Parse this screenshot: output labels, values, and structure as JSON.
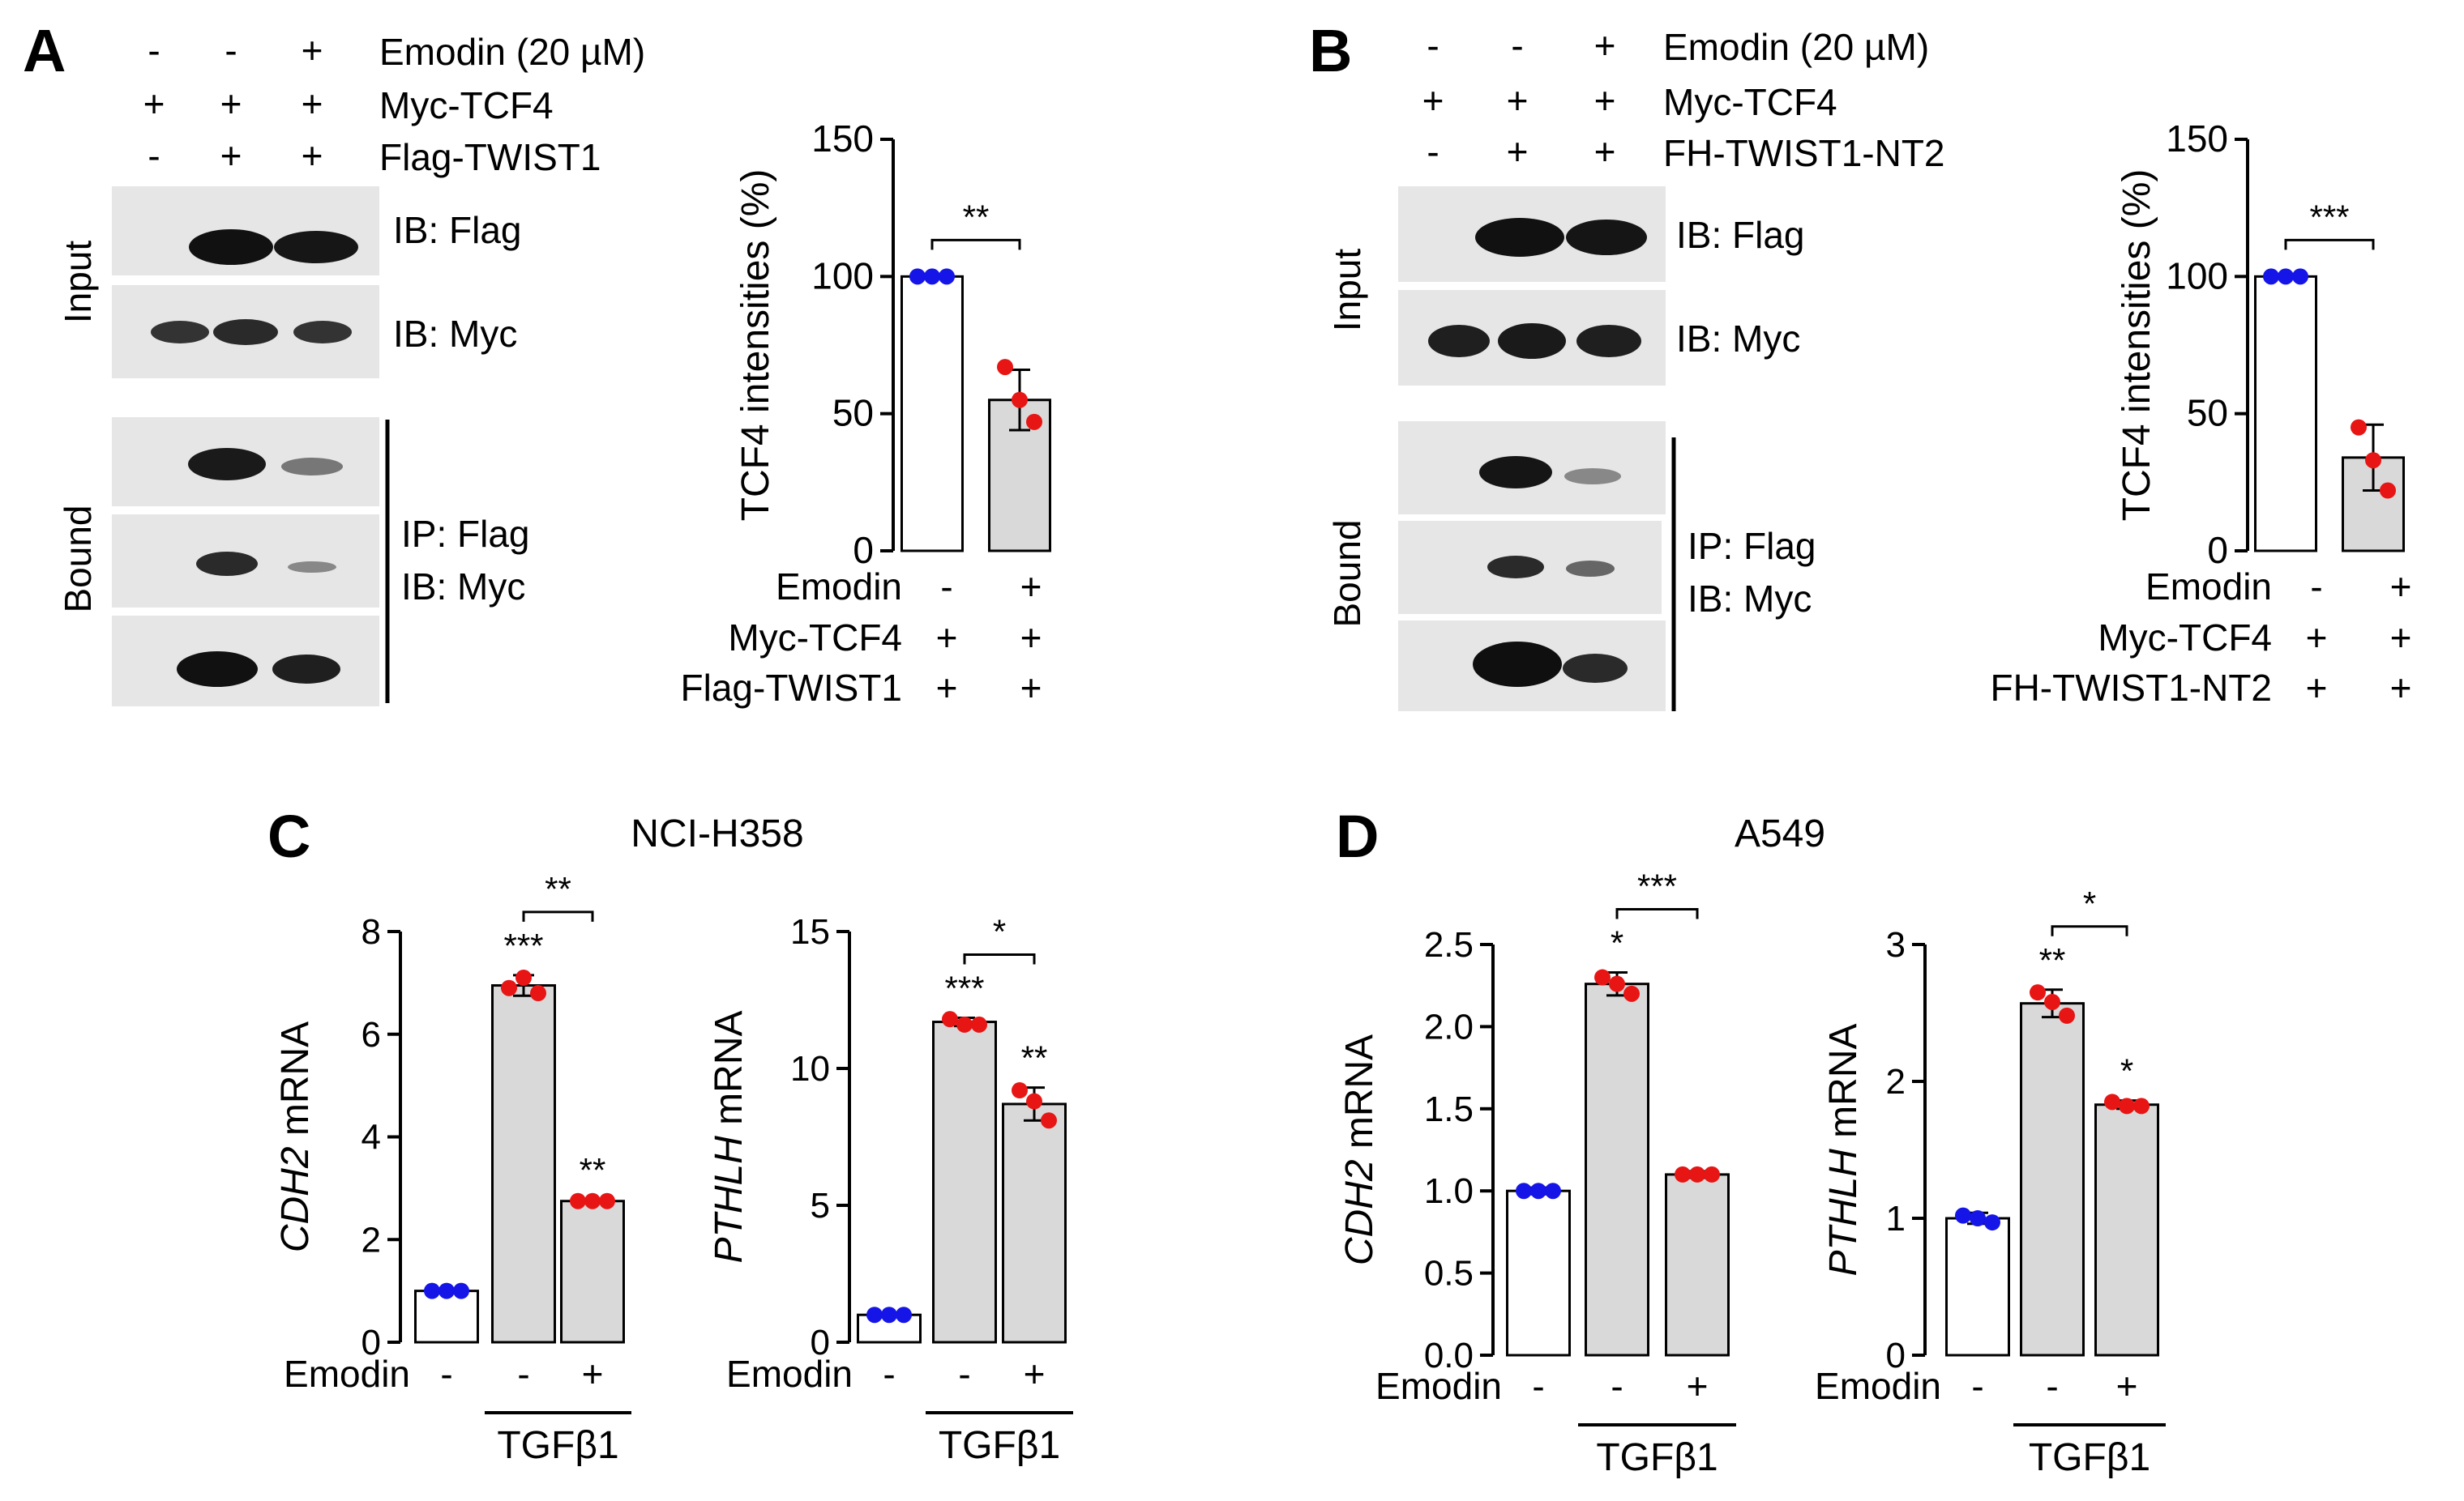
{
  "panels": {
    "A": {
      "letter": "A",
      "treatments": [
        {
          "label": "Emodin (20 µM)",
          "signs": [
            "-",
            "-",
            "+"
          ]
        },
        {
          "label": "Myc-TCF4",
          "signs": [
            "+",
            "+",
            "+"
          ]
        },
        {
          "label": "Flag-TWIST1",
          "signs": [
            "-",
            "+",
            "+"
          ]
        }
      ],
      "blot_labels": {
        "input_side": "Input",
        "bound_side": "Bound",
        "ib_flag": "IB: Flag",
        "ib_myc": "IB: Myc",
        "ip_flag": "IP: Flag",
        "ip_ib_myc": "IB: Myc"
      }
    },
    "B": {
      "letter": "B",
      "treatments": [
        {
          "label": "Emodin (20 µM)",
          "signs": [
            "-",
            "-",
            "+"
          ]
        },
        {
          "label": "Myc-TCF4",
          "signs": [
            "+",
            "+",
            "+"
          ]
        },
        {
          "label": "FH-TWIST1-NT2",
          "signs": [
            "-",
            "+",
            "+"
          ]
        }
      ],
      "blot_labels": {
        "input_side": "Input",
        "bound_side": "Bound",
        "ib_flag": "IB: Flag",
        "ib_myc": "IB: Myc",
        "ip_flag": "IP: Flag",
        "ip_ib_myc": "IB: Myc"
      }
    },
    "C": {
      "letter": "C",
      "cell_line": "NCI-H358"
    },
    "D": {
      "letter": "D",
      "cell_line": "A549"
    }
  },
  "colors": {
    "control_dot": "#1515e8",
    "treated_dot": "#e81515",
    "bar_fill_gray": "#d9d9d9",
    "bar_fill_white": "#ffffff",
    "blot_background": "#e6e6e6",
    "band": "#111111"
  },
  "chart_data": [
    {
      "type": "bar",
      "panel": "A",
      "ylabel": "TCF4 intensities (%)",
      "ylim": [
        0,
        150
      ],
      "yticks": [
        0,
        50,
        100,
        150
      ],
      "categories": [
        "Emodin -",
        "Emodin +"
      ],
      "values": [
        100,
        55
      ],
      "errors": [
        0,
        11
      ],
      "points": [
        [
          100,
          100,
          100
        ],
        [
          67,
          55,
          47
        ]
      ],
      "significance": [
        {
          "between": [
            0,
            1
          ],
          "label": "**"
        }
      ],
      "x_rows": [
        {
          "label": "Emodin",
          "signs": [
            "-",
            "+"
          ]
        },
        {
          "label": "Myc-TCF4",
          "signs": [
            "+",
            "+"
          ]
        },
        {
          "label": "Flag-TWIST1",
          "signs": [
            "+",
            "+"
          ]
        }
      ]
    },
    {
      "type": "bar",
      "panel": "B",
      "ylabel": "TCF4 intensities (%)",
      "ylim": [
        0,
        150
      ],
      "yticks": [
        0,
        50,
        100,
        150
      ],
      "categories": [
        "Emodin -",
        "Emodin +"
      ],
      "values": [
        100,
        34
      ],
      "errors": [
        0,
        12
      ],
      "points": [
        [
          100,
          100,
          100
        ],
        [
          45,
          33,
          22
        ]
      ],
      "significance": [
        {
          "between": [
            0,
            1
          ],
          "label": "***"
        }
      ],
      "x_rows": [
        {
          "label": "Emodin",
          "signs": [
            "-",
            "+"
          ]
        },
        {
          "label": "Myc-TCF4",
          "signs": [
            "+",
            "+"
          ]
        },
        {
          "label": "FH-TWIST1-NT2",
          "signs": [
            "+",
            "+"
          ]
        }
      ]
    },
    {
      "type": "bar",
      "panel": "C",
      "ylabel_italic": "CDH2",
      "ylabel_rest": " mRNA",
      "ylim": [
        0,
        8
      ],
      "yticks": [
        0,
        2,
        4,
        6,
        8
      ],
      "categories": [
        "-",
        "-",
        "+"
      ],
      "values": [
        1.0,
        6.95,
        2.75
      ],
      "errors": [
        0.03,
        0.2,
        0.03
      ],
      "points": [
        [
          1.0,
          1.0,
          1.0
        ],
        [
          6.9,
          7.1,
          6.8
        ],
        [
          2.75,
          2.75,
          2.75
        ]
      ],
      "marks": [
        "",
        "***",
        "**"
      ],
      "significance": [
        {
          "between": [
            1,
            2
          ],
          "label": "**"
        }
      ],
      "x_row_label": "Emodin",
      "group_label": "TGFβ1"
    },
    {
      "type": "bar",
      "panel": "C",
      "ylabel_italic": "PTHLH",
      "ylabel_rest": " mRNA",
      "ylim": [
        0,
        15
      ],
      "yticks": [
        0,
        5,
        10,
        15
      ],
      "categories": [
        "-",
        "-",
        "+"
      ],
      "values": [
        1.0,
        11.7,
        8.7
      ],
      "errors": [
        0.05,
        0.15,
        0.6
      ],
      "points": [
        [
          1.0,
          1.0,
          1.0
        ],
        [
          11.8,
          11.6,
          11.6
        ],
        [
          9.2,
          8.8,
          8.1
        ]
      ],
      "marks": [
        "",
        "***",
        "**"
      ],
      "significance": [
        {
          "between": [
            1,
            2
          ],
          "label": "*"
        }
      ],
      "x_row_label": "Emodin",
      "group_label": "TGFβ1"
    },
    {
      "type": "bar",
      "panel": "D",
      "ylabel_italic": "CDH2",
      "ylabel_rest": " mRNA",
      "ylim": [
        0,
        2.5
      ],
      "yticks": [
        0.0,
        0.5,
        1.0,
        1.5,
        2.0,
        2.5
      ],
      "ytick_labels": [
        "0.0",
        "0.5",
        "1.0",
        "1.5",
        "2.0",
        "2.5"
      ],
      "categories": [
        "-",
        "-",
        "+"
      ],
      "values": [
        1.0,
        2.26,
        1.1
      ],
      "errors": [
        0.02,
        0.07,
        0.02
      ],
      "points": [
        [
          1.0,
          1.0,
          1.0
        ],
        [
          2.3,
          2.26,
          2.2
        ],
        [
          1.1,
          1.1,
          1.1
        ]
      ],
      "marks": [
        "",
        "*",
        ""
      ],
      "significance": [
        {
          "between": [
            1,
            2
          ],
          "label": "***"
        }
      ],
      "x_row_label": "Emodin",
      "group_label": "TGFβ1"
    },
    {
      "type": "bar",
      "panel": "D",
      "ylabel_italic": "PTHLH",
      "ylabel_rest": " mRNA",
      "ylim": [
        0,
        3
      ],
      "yticks": [
        0,
        1,
        2,
        3
      ],
      "categories": [
        "-",
        "-",
        "+"
      ],
      "values": [
        1.0,
        2.57,
        1.83
      ],
      "errors": [
        0.04,
        0.1,
        0.03
      ],
      "points": [
        [
          1.02,
          1.0,
          0.97
        ],
        [
          2.65,
          2.58,
          2.48
        ],
        [
          1.85,
          1.82,
          1.82
        ]
      ],
      "marks": [
        "",
        "**",
        "*"
      ],
      "significance": [
        {
          "between": [
            1,
            2
          ],
          "label": "*"
        }
      ],
      "x_row_label": "Emodin",
      "group_label": "TGFβ1"
    }
  ]
}
